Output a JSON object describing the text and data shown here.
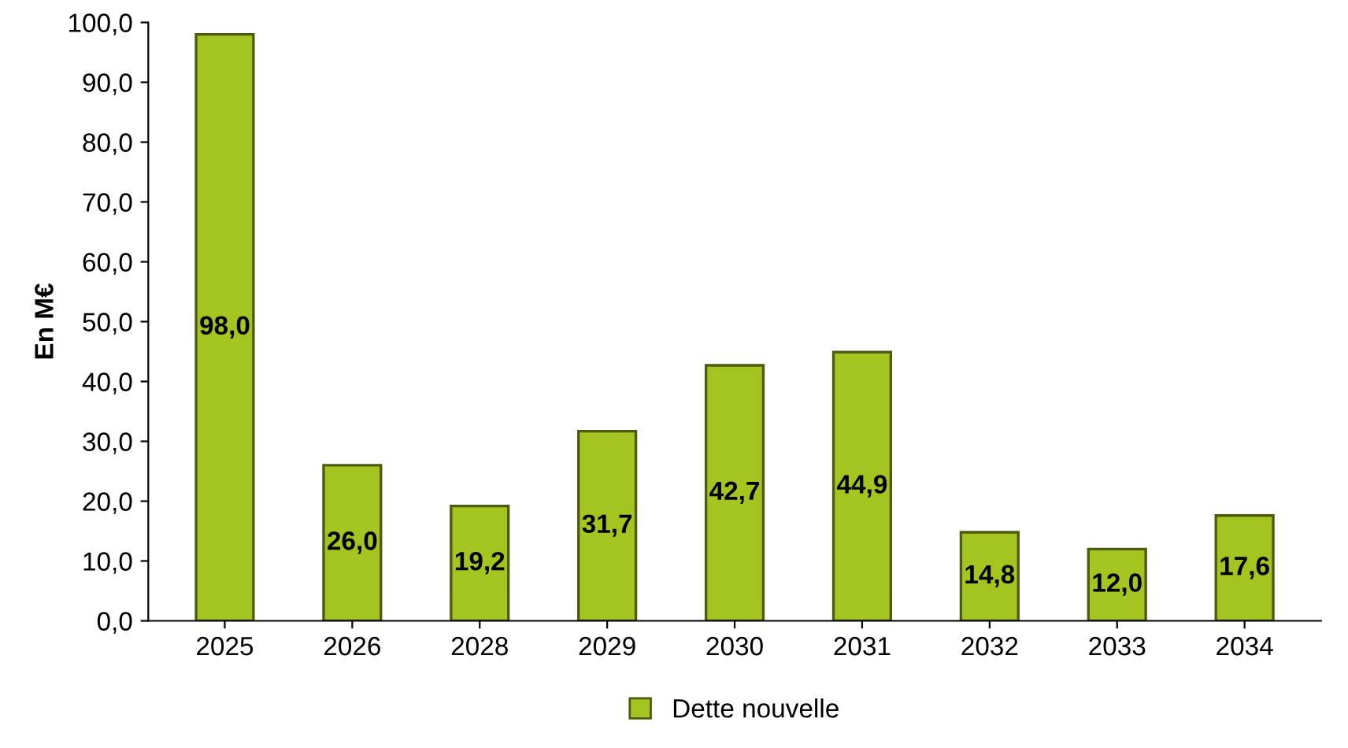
{
  "chart_data": {
    "type": "bar",
    "ylabel": "En M€",
    "categories": [
      "2025",
      "2026",
      "2028",
      "2029",
      "2030",
      "2031",
      "2032",
      "2033",
      "2034"
    ],
    "series": [
      {
        "name": "Dette nouvelle",
        "color": "#a4c520",
        "values": [
          98.0,
          26.0,
          19.2,
          31.7,
          42.7,
          44.9,
          14.8,
          12.0,
          17.6
        ],
        "value_labels": [
          "98,0",
          "26,0",
          "19,2",
          "31,7",
          "42,7",
          "44,9",
          "14,8",
          "12,0",
          "17,6"
        ]
      }
    ],
    "ylim": [
      0,
      100
    ],
    "yticks": [
      {
        "value": 0,
        "label": "0,0"
      },
      {
        "value": 10,
        "label": "10,0"
      },
      {
        "value": 20,
        "label": "20,0"
      },
      {
        "value": 30,
        "label": "30,0"
      },
      {
        "value": 40,
        "label": "40,0"
      },
      {
        "value": 50,
        "label": "50,0"
      },
      {
        "value": 60,
        "label": "60,0"
      },
      {
        "value": 70,
        "label": "70,0"
      },
      {
        "value": 80,
        "label": "80,0"
      },
      {
        "value": 90,
        "label": "90,0"
      },
      {
        "value": 100,
        "label": "100,0"
      }
    ],
    "grid": false,
    "legend": "bottom"
  }
}
